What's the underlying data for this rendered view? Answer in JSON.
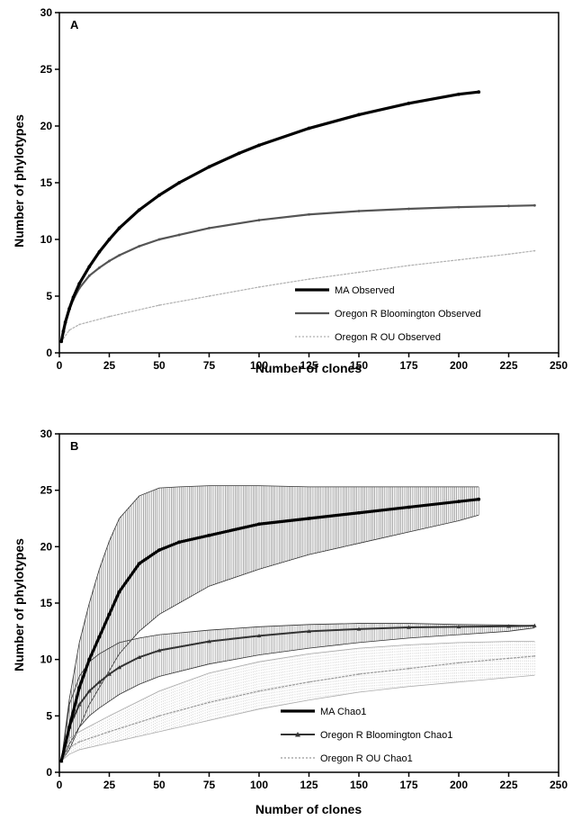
{
  "chart_data": [
    {
      "type": "line",
      "panel_label": "A",
      "xlabel": "Number of clones",
      "ylabel": "Number of phylotypes",
      "xlim": [
        0,
        250
      ],
      "ylim": [
        0,
        30
      ],
      "xticks": [
        0,
        25,
        50,
        75,
        100,
        125,
        150,
        175,
        200,
        225,
        250
      ],
      "yticks": [
        0,
        5,
        10,
        15,
        20,
        25,
        30
      ],
      "legend_position": "bottom-right",
      "grid": false,
      "series": [
        {
          "name": "MA Observed",
          "color": "#000000",
          "style": "thick-solid",
          "x": [
            1,
            2,
            3,
            5,
            7,
            10,
            15,
            20,
            25,
            30,
            40,
            50,
            60,
            75,
            90,
            100,
            125,
            150,
            175,
            200,
            210
          ],
          "y": [
            1.0,
            1.9,
            2.7,
            3.9,
            4.9,
            6.1,
            7.6,
            8.9,
            10.0,
            11.0,
            12.6,
            13.9,
            15.0,
            16.4,
            17.6,
            18.3,
            19.8,
            21.0,
            22.0,
            22.8,
            23.0
          ]
        },
        {
          "name": "Oregon R Bloomington Observed",
          "color": "#555555",
          "style": "medium",
          "x": [
            1,
            2,
            3,
            5,
            7,
            10,
            15,
            20,
            25,
            30,
            40,
            50,
            60,
            75,
            100,
            125,
            150,
            175,
            200,
            225,
            238
          ],
          "y": [
            1.0,
            1.8,
            2.6,
            3.8,
            4.7,
            5.7,
            6.8,
            7.5,
            8.1,
            8.6,
            9.4,
            10.0,
            10.4,
            11.0,
            11.7,
            12.2,
            12.5,
            12.7,
            12.85,
            12.95,
            13.0
          ]
        },
        {
          "name": "Oregon R OU Observed",
          "color": "#b0b0b0",
          "style": "thin-dotted",
          "x": [
            1,
            5,
            10,
            25,
            50,
            75,
            100,
            125,
            150,
            175,
            200,
            225,
            238
          ],
          "y": [
            1.0,
            2.0,
            2.5,
            3.2,
            4.2,
            5.0,
            5.8,
            6.5,
            7.1,
            7.7,
            8.2,
            8.7,
            9.0
          ]
        }
      ]
    },
    {
      "type": "line",
      "panel_label": "B",
      "xlabel": "Number of clones",
      "ylabel": "Number of phylotypes",
      "xlim": [
        0,
        250
      ],
      "ylim": [
        0,
        30
      ],
      "xticks": [
        0,
        25,
        50,
        75,
        100,
        125,
        150,
        175,
        200,
        225,
        250
      ],
      "yticks": [
        0,
        5,
        10,
        15,
        20,
        25,
        30
      ],
      "legend_position": "bottom-right",
      "grid": false,
      "error_bars": true,
      "series": [
        {
          "name": "MA Chao1",
          "color": "#000000",
          "style": "thick-solid",
          "x": [
            1,
            5,
            10,
            15,
            20,
            25,
            30,
            40,
            50,
            60,
            75,
            100,
            125,
            150,
            175,
            200,
            210
          ],
          "y": [
            1.0,
            4.0,
            7.5,
            10.0,
            12.0,
            14.0,
            16.0,
            18.5,
            19.7,
            20.4,
            21.0,
            22.0,
            22.5,
            23.0,
            23.5,
            24.0,
            24.2
          ],
          "upper": [
            1.0,
            6.5,
            11.5,
            15.0,
            18.0,
            20.5,
            22.5,
            24.5,
            25.2,
            25.3,
            25.4,
            25.4,
            25.3,
            25.3,
            25.3,
            25.3,
            25.3
          ],
          "lower": [
            1.0,
            2.0,
            4.0,
            6.0,
            7.5,
            9.0,
            10.5,
            12.5,
            14.0,
            15.0,
            16.5,
            18.0,
            19.3,
            20.3,
            21.3,
            22.3,
            22.8
          ]
        },
        {
          "name": "Oregon R Bloomington Chao1",
          "color": "#333333",
          "style": "medium-triangles",
          "x": [
            1,
            5,
            10,
            15,
            20,
            25,
            30,
            40,
            50,
            75,
            100,
            125,
            150,
            175,
            200,
            225,
            238
          ],
          "y": [
            1.0,
            4.0,
            6.0,
            7.2,
            8.0,
            8.7,
            9.3,
            10.2,
            10.8,
            11.6,
            12.1,
            12.5,
            12.7,
            12.85,
            12.9,
            12.95,
            13.0
          ],
          "upper": [
            1.0,
            6.0,
            8.5,
            9.8,
            10.5,
            11.0,
            11.5,
            11.9,
            12.2,
            12.6,
            12.9,
            13.1,
            13.2,
            13.2,
            13.1,
            13.05,
            13.0
          ],
          "lower": [
            1.0,
            2.5,
            4.0,
            5.0,
            5.7,
            6.3,
            6.9,
            7.8,
            8.5,
            9.6,
            10.4,
            11.0,
            11.5,
            11.9,
            12.2,
            12.5,
            12.8
          ]
        },
        {
          "name": "Oregon R OU Chao1",
          "color": "#9a9a9a",
          "style": "thin-dotted",
          "x": [
            1,
            5,
            10,
            25,
            50,
            75,
            100,
            125,
            150,
            175,
            200,
            225,
            238
          ],
          "y": [
            1.0,
            2.2,
            2.7,
            3.6,
            5.0,
            6.2,
            7.2,
            8.0,
            8.7,
            9.2,
            9.7,
            10.1,
            10.3
          ],
          "upper": [
            1.0,
            3.0,
            3.6,
            5.0,
            7.2,
            8.8,
            9.8,
            10.5,
            11.0,
            11.3,
            11.5,
            11.6,
            11.6
          ],
          "lower": [
            1.0,
            1.6,
            2.0,
            2.6,
            3.6,
            4.6,
            5.6,
            6.4,
            7.1,
            7.6,
            8.0,
            8.4,
            8.6
          ]
        }
      ]
    }
  ]
}
